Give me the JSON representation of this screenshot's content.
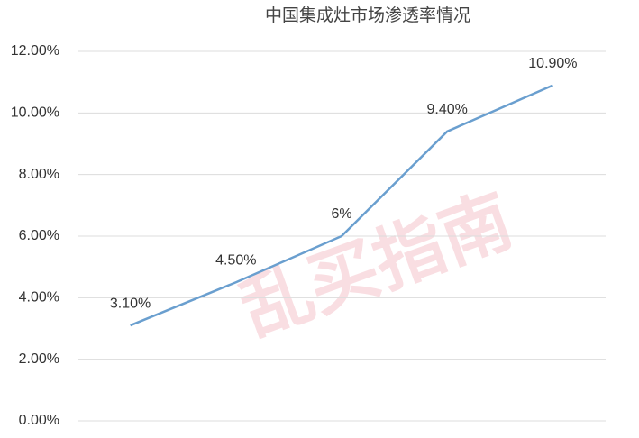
{
  "chart_data": {
    "type": "line",
    "title": "中国集成灶市场渗透率情况",
    "watermark": "乱买指南",
    "categories": [
      null,
      null,
      null,
      null,
      null
    ],
    "series": [
      {
        "color": "#6a9fcf",
        "values": [
          3.1,
          4.5,
          6,
          9.4,
          10.9
        ],
        "value_labels": [
          "3.10%",
          "4.50%",
          "6%",
          "9.40%",
          "10.90%"
        ]
      }
    ],
    "ylim": [
      0,
      12
    ],
    "yticks": [
      {
        "value": 0,
        "label": "0.00%"
      },
      {
        "value": 2,
        "label": "2.00%"
      },
      {
        "value": 4,
        "label": "4.00%"
      },
      {
        "value": 6,
        "label": "6.00%"
      },
      {
        "value": 8,
        "label": "8.00%"
      },
      {
        "value": 10,
        "label": "10.00%"
      },
      {
        "value": 12,
        "label": "12.00%"
      }
    ],
    "grid": true
  }
}
